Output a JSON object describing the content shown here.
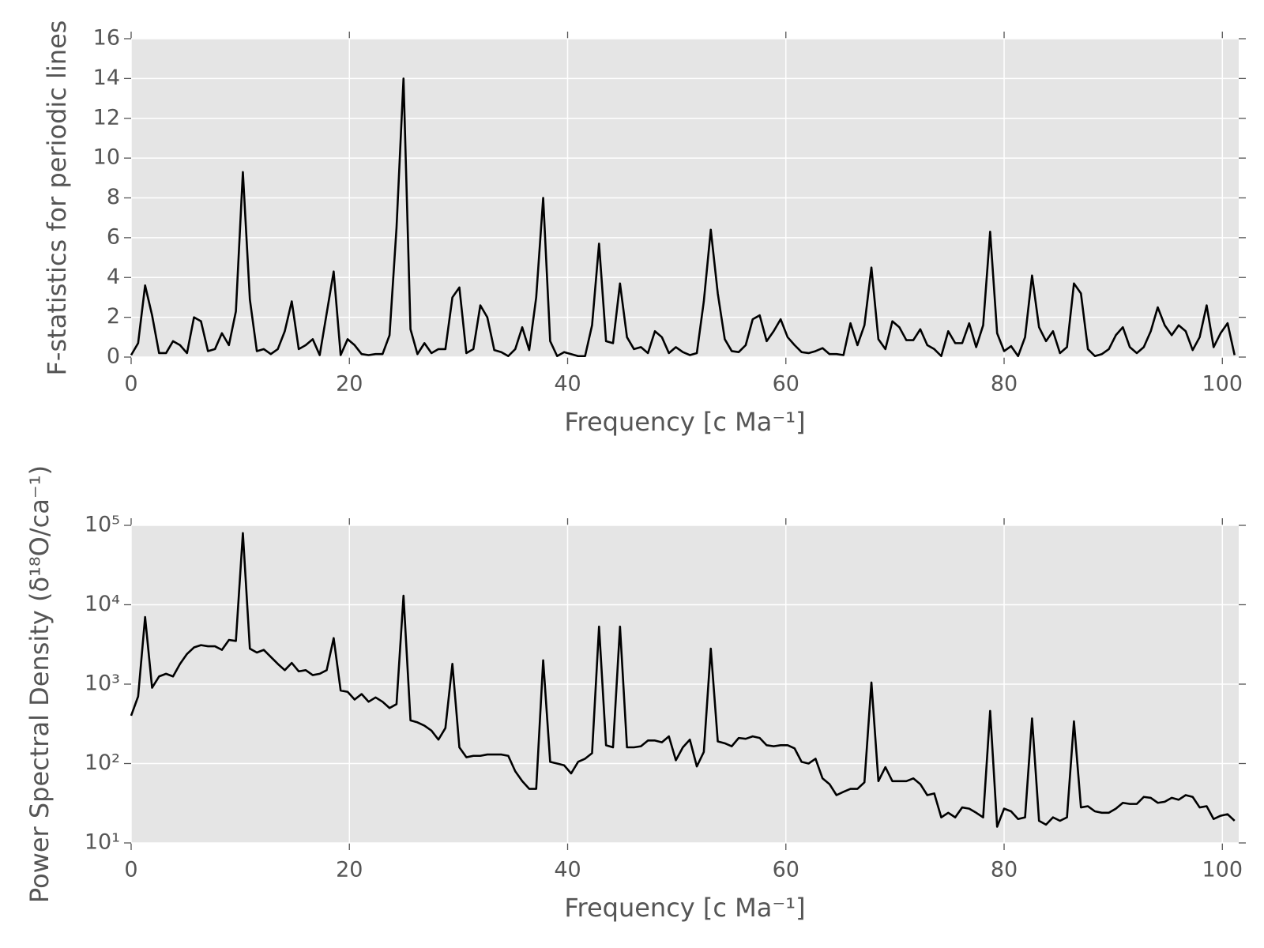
{
  "chart_data": [
    {
      "type": "line",
      "ylabel": "F-statistics for periodic lines",
      "xlabel": "Frequency [c Ma⁻¹]",
      "color": "#000000",
      "grid": true,
      "xlim": [
        0,
        101.5
      ],
      "xticks": [
        0,
        20,
        40,
        60,
        80,
        100
      ],
      "ylim": [
        0,
        16
      ],
      "yticks": [
        0,
        2,
        4,
        6,
        8,
        10,
        12,
        14,
        16
      ],
      "x": [
        0,
        0.64,
        1.28,
        1.92,
        2.56,
        3.2,
        3.84,
        4.48,
        5.12,
        5.76,
        6.4,
        7.04,
        7.68,
        8.32,
        8.96,
        9.6,
        10.24,
        10.88,
        11.52,
        12.16,
        12.8,
        13.44,
        14.08,
        14.72,
        15.36,
        16,
        16.64,
        17.28,
        17.92,
        18.56,
        19.2,
        19.84,
        20.48,
        21.12,
        21.76,
        22.4,
        23.04,
        23.68,
        24.32,
        24.96,
        25.6,
        26.24,
        26.88,
        27.52,
        28.16,
        28.8,
        29.44,
        30.08,
        30.72,
        31.36,
        32,
        32.64,
        33.28,
        33.92,
        34.56,
        35.2,
        35.84,
        36.48,
        37.12,
        37.76,
        38.4,
        39.04,
        39.68,
        40.32,
        40.96,
        41.6,
        42.24,
        42.88,
        43.52,
        44.16,
        44.8,
        45.44,
        46.08,
        46.72,
        47.36,
        48,
        48.64,
        49.28,
        49.92,
        50.56,
        51.2,
        51.84,
        52.48,
        53.12,
        53.76,
        54.4,
        55.04,
        55.68,
        56.32,
        56.96,
        57.6,
        58.24,
        58.88,
        59.52,
        60.16,
        60.8,
        61.44,
        62.08,
        62.72,
        63.36,
        64,
        64.64,
        65.28,
        65.92,
        66.56,
        67.2,
        67.84,
        68.48,
        69.12,
        69.76,
        70.4,
        71.04,
        71.68,
        72.32,
        72.96,
        73.6,
        74.24,
        74.88,
        75.52,
        76.16,
        76.8,
        77.44,
        78.08,
        78.72,
        79.36,
        80,
        80.64,
        81.28,
        81.92,
        82.56,
        83.2,
        83.84,
        84.48,
        85.12,
        85.76,
        86.4,
        87.04,
        87.68,
        88.32,
        88.96,
        89.6,
        90.24,
        90.88,
        91.52,
        92.16,
        92.8,
        93.44,
        94.08,
        94.72,
        95.36,
        96,
        96.64,
        97.28,
        97.92,
        98.56,
        99.2,
        99.84,
        100.48,
        101.12
      ],
      "values": [
        0.1,
        0.7,
        3.6,
        2.1,
        0.2,
        0.2,
        0.8,
        0.6,
        0.2,
        2.0,
        1.8,
        0.3,
        0.4,
        1.2,
        0.6,
        2.3,
        9.3,
        2.9,
        0.3,
        0.4,
        0.15,
        0.4,
        1.3,
        2.8,
        0.4,
        0.6,
        0.9,
        0.1,
        2.2,
        4.3,
        0.1,
        0.9,
        0.6,
        0.15,
        0.1,
        0.15,
        0.15,
        1.1,
        6.5,
        14.0,
        1.4,
        0.15,
        0.7,
        0.2,
        0.4,
        0.4,
        3.0,
        3.5,
        0.2,
        0.4,
        2.6,
        2.0,
        0.35,
        0.25,
        0.05,
        0.4,
        1.5,
        0.35,
        3.0,
        8.0,
        0.8,
        0.05,
        0.25,
        0.15,
        0.05,
        0.05,
        1.6,
        5.7,
        0.8,
        0.7,
        3.7,
        1.0,
        0.4,
        0.5,
        0.2,
        1.3,
        1.0,
        0.2,
        0.5,
        0.25,
        0.1,
        0.2,
        2.8,
        6.4,
        3.2,
        0.9,
        0.3,
        0.25,
        0.6,
        1.9,
        2.1,
        0.8,
        1.3,
        1.9,
        1.0,
        0.6,
        0.25,
        0.2,
        0.3,
        0.45,
        0.15,
        0.15,
        0.1,
        1.7,
        0.6,
        1.6,
        4.5,
        0.9,
        0.4,
        1.8,
        1.5,
        0.85,
        0.85,
        1.4,
        0.6,
        0.4,
        0.05,
        1.3,
        0.7,
        0.7,
        1.7,
        0.5,
        1.6,
        6.3,
        1.2,
        0.3,
        0.55,
        0.05,
        1.0,
        4.1,
        1.5,
        0.8,
        1.3,
        0.2,
        0.5,
        3.7,
        3.2,
        0.4,
        0.05,
        0.15,
        0.4,
        1.1,
        1.5,
        0.5,
        0.2,
        0.5,
        1.3,
        2.5,
        1.6,
        1.1,
        1.6,
        1.3,
        0.35,
        1.0,
        2.6,
        0.5,
        1.2,
        1.7,
        0.1
      ]
    },
    {
      "type": "line",
      "ylabel": "Power Spectral Density (δ¹⁸O/ca⁻¹)",
      "xlabel": "Frequency [c Ma⁻¹]",
      "color": "#000000",
      "grid": true,
      "yscale": "log",
      "xlim": [
        0,
        101.5
      ],
      "xticks": [
        0,
        20,
        40,
        60,
        80,
        100
      ],
      "ylim": [
        10,
        100000
      ],
      "yticks": [
        {
          "value": 10,
          "label": "10¹"
        },
        {
          "value": 100,
          "label": "10²"
        },
        {
          "value": 1000,
          "label": "10³"
        },
        {
          "value": 10000,
          "label": "10⁴"
        },
        {
          "value": 100000,
          "label": "10⁵"
        }
      ],
      "x": [
        0,
        0.64,
        1.28,
        1.92,
        2.56,
        3.2,
        3.84,
        4.48,
        5.12,
        5.76,
        6.4,
        7.04,
        7.68,
        8.32,
        8.96,
        9.6,
        10.24,
        10.88,
        11.52,
        12.16,
        12.8,
        13.44,
        14.08,
        14.72,
        15.36,
        16,
        16.64,
        17.28,
        17.92,
        18.56,
        19.2,
        19.84,
        20.48,
        21.12,
        21.76,
        22.4,
        23.04,
        23.68,
        24.32,
        24.96,
        25.6,
        26.24,
        26.88,
        27.52,
        28.16,
        28.8,
        29.44,
        30.08,
        30.72,
        31.36,
        32,
        32.64,
        33.28,
        33.92,
        34.56,
        35.2,
        35.84,
        36.48,
        37.12,
        37.76,
        38.4,
        39.04,
        39.68,
        40.32,
        40.96,
        41.6,
        42.24,
        42.88,
        43.52,
        44.16,
        44.8,
        45.44,
        46.08,
        46.72,
        47.36,
        48,
        48.64,
        49.28,
        49.92,
        50.56,
        51.2,
        51.84,
        52.48,
        53.12,
        53.76,
        54.4,
        55.04,
        55.68,
        56.32,
        56.96,
        57.6,
        58.24,
        58.88,
        59.52,
        60.16,
        60.8,
        61.44,
        62.08,
        62.72,
        63.36,
        64,
        64.64,
        65.28,
        65.92,
        66.56,
        67.2,
        67.84,
        68.48,
        69.12,
        69.76,
        70.4,
        71.04,
        71.68,
        72.32,
        72.96,
        73.6,
        74.24,
        74.88,
        75.52,
        76.16,
        76.8,
        77.44,
        78.08,
        78.72,
        79.36,
        80,
        80.64,
        81.28,
        81.92,
        82.56,
        83.2,
        83.84,
        84.48,
        85.12,
        85.76,
        86.4,
        87.04,
        87.68,
        88.32,
        88.96,
        89.6,
        90.24,
        90.88,
        91.52,
        92.16,
        92.8,
        93.44,
        94.08,
        94.72,
        95.36,
        96,
        96.64,
        97.28,
        97.92,
        98.56,
        99.2,
        99.84,
        100.48,
        101.12
      ],
      "values": [
        400,
        700,
        7000,
        900,
        1250,
        1350,
        1250,
        1800,
        2400,
        2900,
        3100,
        3000,
        3000,
        2700,
        3600,
        3500,
        80000,
        2800,
        2500,
        2700,
        2200,
        1800,
        1500,
        1850,
        1450,
        1500,
        1300,
        1350,
        1500,
        3800,
        830,
        800,
        640,
        750,
        600,
        680,
        600,
        500,
        560,
        13000,
        350,
        330,
        300,
        260,
        200,
        280,
        1800,
        160,
        120,
        125,
        125,
        130,
        130,
        130,
        125,
        80,
        60,
        48,
        48,
        2000,
        105,
        100,
        95,
        75,
        105,
        115,
        135,
        5300,
        170,
        160,
        5300,
        160,
        160,
        165,
        195,
        195,
        185,
        220,
        110,
        160,
        200,
        92,
        140,
        2800,
        190,
        180,
        165,
        210,
        205,
        220,
        210,
        170,
        165,
        170,
        170,
        155,
        105,
        100,
        115,
        65,
        55,
        40,
        44,
        48,
        48,
        58,
        1050,
        60,
        90,
        60,
        60,
        60,
        65,
        55,
        40,
        42,
        21,
        24,
        21,
        28,
        27,
        24,
        21,
        460,
        16,
        27,
        25,
        20,
        21,
        370,
        19,
        17,
        21,
        19,
        21,
        340,
        28,
        29,
        25,
        24,
        24,
        27,
        32,
        31,
        31,
        38,
        37,
        32,
        33,
        37,
        35,
        40,
        38,
        28,
        29,
        20,
        22,
        23,
        19
      ]
    }
  ]
}
